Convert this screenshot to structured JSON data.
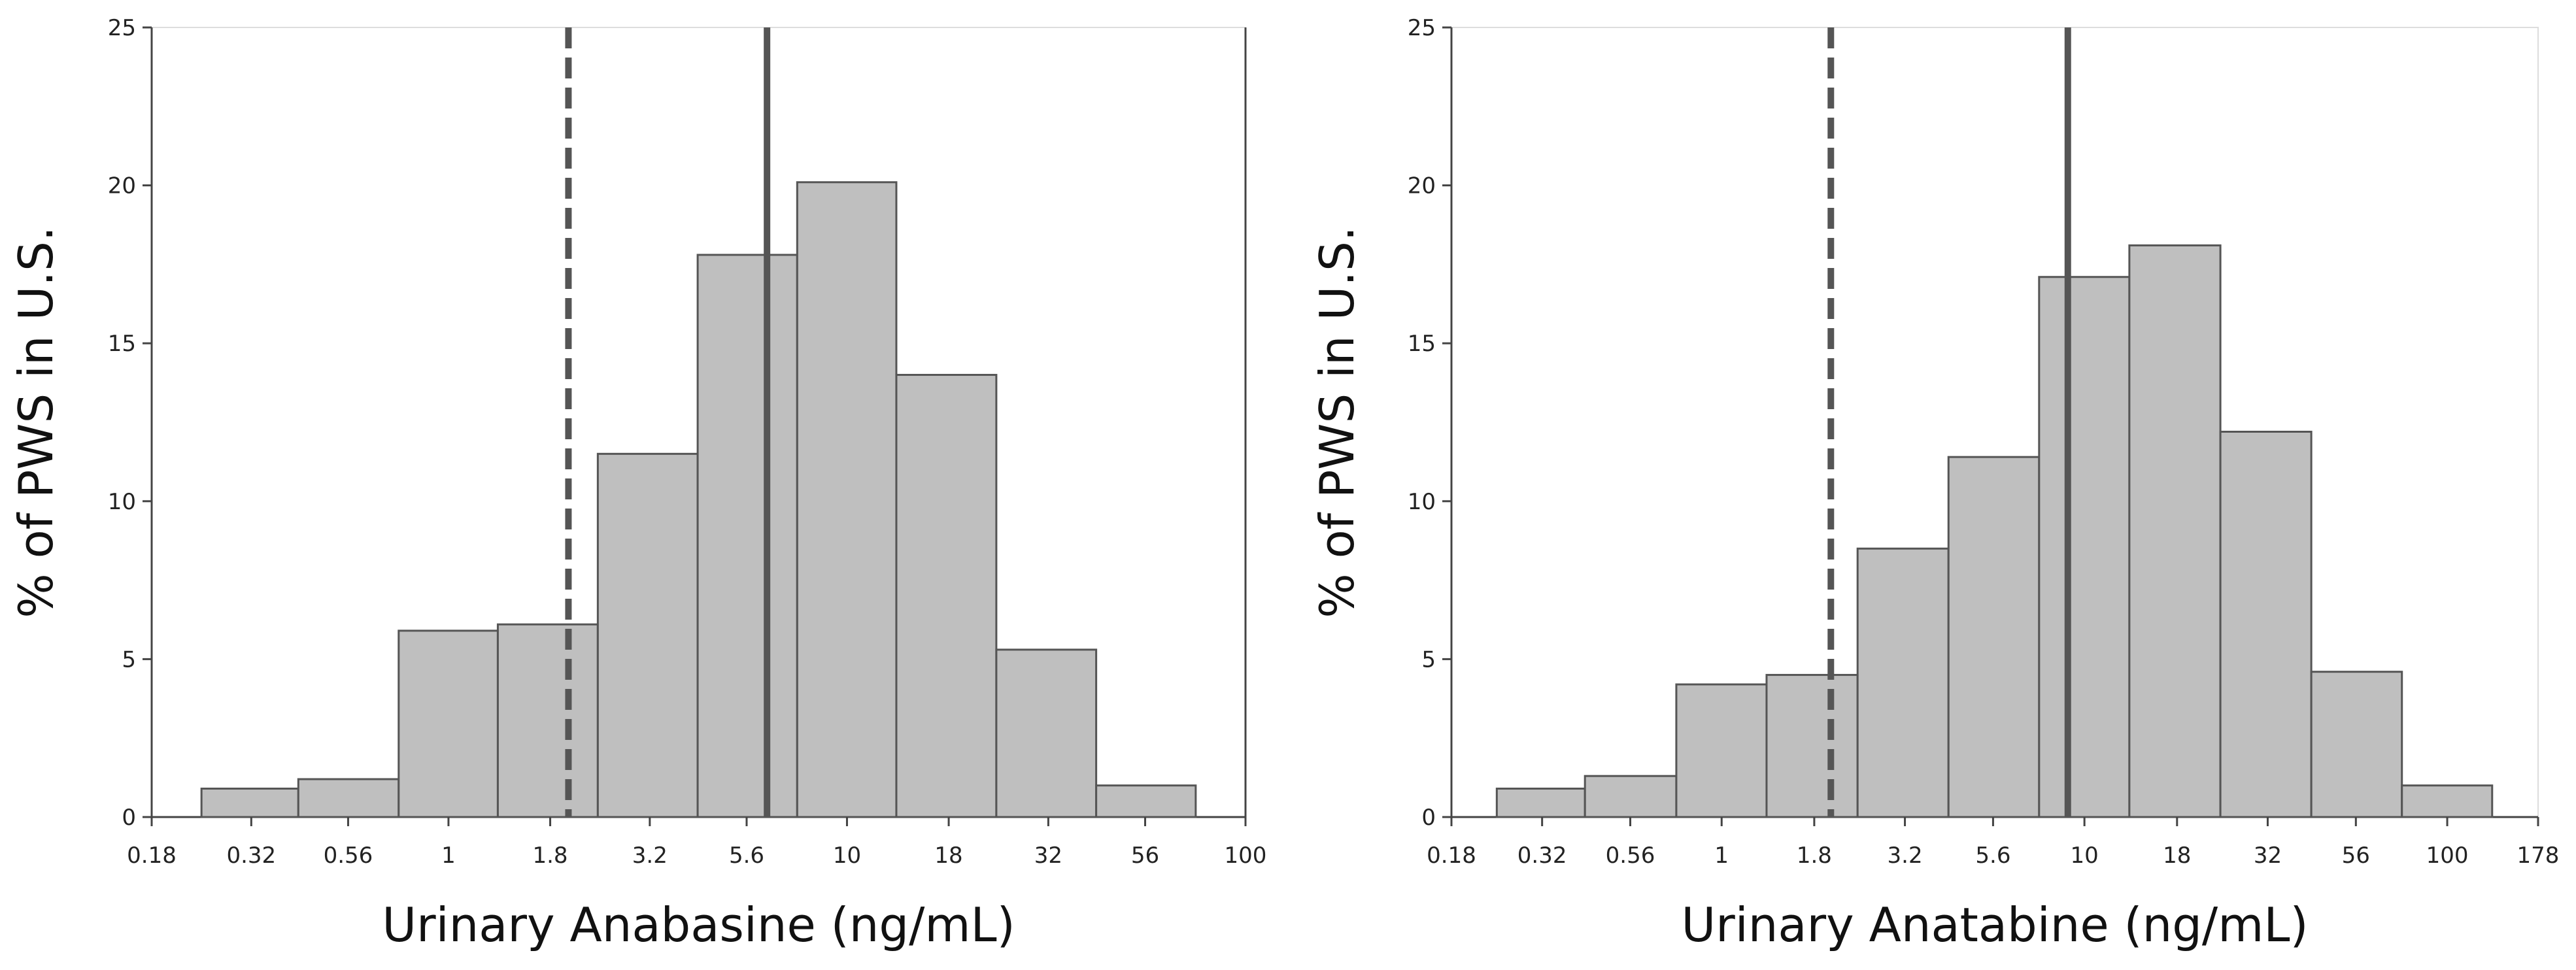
{
  "chart_data": [
    {
      "type": "bar",
      "title": "",
      "xlabel": "Urinary Anabasine (ng/mL)",
      "ylabel": "% of PWS in U.S.",
      "ylim": [
        0,
        25
      ],
      "yticks": [
        "0",
        "5",
        "10",
        "15",
        "20",
        "25"
      ],
      "xticks": [
        "0.18",
        "0.32",
        "0.56",
        "1",
        "1.8",
        "3.2",
        "5.6",
        "10",
        "18",
        "32",
        "56",
        "100"
      ],
      "xscale": "log",
      "xlim": [
        0.18,
        100
      ],
      "bins": [
        {
          "lo": 0.24,
          "hi": 0.42,
          "value": 0.9
        },
        {
          "lo": 0.42,
          "hi": 0.75,
          "value": 1.2
        },
        {
          "lo": 0.75,
          "hi": 1.33,
          "value": 5.9
        },
        {
          "lo": 1.33,
          "hi": 2.37,
          "value": 6.1
        },
        {
          "lo": 2.37,
          "hi": 4.22,
          "value": 11.5
        },
        {
          "lo": 4.22,
          "hi": 7.5,
          "value": 17.8
        },
        {
          "lo": 7.5,
          "hi": 13.3,
          "value": 20.1
        },
        {
          "lo": 13.3,
          "hi": 23.7,
          "value": 14.0
        },
        {
          "lo": 23.7,
          "hi": 42.2,
          "value": 5.3
        },
        {
          "lo": 42.2,
          "hi": 75.0,
          "value": 1.0
        }
      ],
      "reference_lines": [
        {
          "style": "dashed",
          "x": 2.0
        },
        {
          "style": "solid",
          "x": 6.3
        }
      ]
    },
    {
      "type": "bar",
      "title": "",
      "xlabel": "Urinary Anatabine (ng/mL)",
      "ylabel": "% of PWS in U.S.",
      "ylim": [
        0,
        25
      ],
      "yticks": [
        "0",
        "5",
        "10",
        "15",
        "20",
        "25"
      ],
      "xticks": [
        "0.18",
        "0.32",
        "0.56",
        "1",
        "1.8",
        "3.2",
        "5.6",
        "10",
        "18",
        "32",
        "56",
        "100",
        "178"
      ],
      "xscale": "log",
      "xlim": [
        0.18,
        178
      ],
      "bins": [
        {
          "lo": 0.24,
          "hi": 0.42,
          "value": 0.9
        },
        {
          "lo": 0.42,
          "hi": 0.75,
          "value": 1.3
        },
        {
          "lo": 0.75,
          "hi": 1.33,
          "value": 4.2
        },
        {
          "lo": 1.33,
          "hi": 2.37,
          "value": 4.5
        },
        {
          "lo": 2.37,
          "hi": 4.22,
          "value": 8.5
        },
        {
          "lo": 4.22,
          "hi": 7.5,
          "value": 11.4
        },
        {
          "lo": 7.5,
          "hi": 13.3,
          "value": 17.1
        },
        {
          "lo": 13.3,
          "hi": 23.7,
          "value": 18.1
        },
        {
          "lo": 23.7,
          "hi": 42.2,
          "value": 12.2
        },
        {
          "lo": 42.2,
          "hi": 75.0,
          "value": 4.6
        },
        {
          "lo": 75.0,
          "hi": 133.0,
          "value": 1.0
        }
      ],
      "reference_lines": [
        {
          "style": "dashed",
          "x": 2.0
        },
        {
          "style": "solid",
          "x": 9.0
        }
      ]
    }
  ]
}
